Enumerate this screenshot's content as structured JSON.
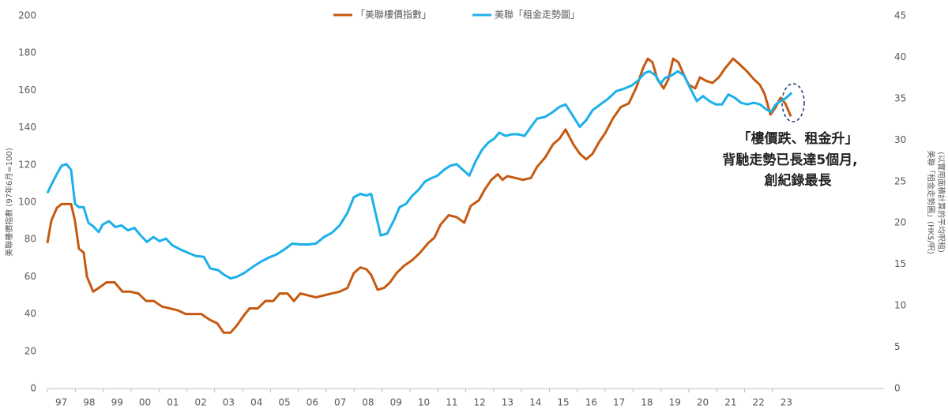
{
  "chart_data": {
    "type": "line",
    "y_label": "美聯樓價指數 (97年6月=100)",
    "y2_label": "美聯「租金走勢圖」(HK$/呎)",
    "y2_label_note": "(以實用面積計算的平均呎租)",
    "annotation": [
      "「樓價跌、租金升」",
      "背馳走勢已長達5個月,",
      "創紀錄最長"
    ],
    "xlim": [
      1997,
      2027
    ],
    "xticks": [
      {
        "value": 1997,
        "label": "97"
      },
      {
        "value": 1998,
        "label": "98"
      },
      {
        "value": 1999,
        "label": "99"
      },
      {
        "value": 2000,
        "label": "00"
      },
      {
        "value": 2001,
        "label": "01"
      },
      {
        "value": 2002,
        "label": "02"
      },
      {
        "value": 2003,
        "label": "03"
      },
      {
        "value": 2004,
        "label": "04"
      },
      {
        "value": 2005,
        "label": "05"
      },
      {
        "value": 2006,
        "label": "06"
      },
      {
        "value": 2007,
        "label": "07"
      },
      {
        "value": 2008,
        "label": "08"
      },
      {
        "value": 2009,
        "label": "09"
      },
      {
        "value": 2010,
        "label": "10"
      },
      {
        "value": 2011,
        "label": "11"
      },
      {
        "value": 2012,
        "label": "12"
      },
      {
        "value": 2013,
        "label": "13"
      },
      {
        "value": 2014,
        "label": "14"
      },
      {
        "value": 2015,
        "label": "15"
      },
      {
        "value": 2016,
        "label": "16"
      },
      {
        "value": 2017,
        "label": "17"
      },
      {
        "value": 2018,
        "label": "18"
      },
      {
        "value": 2019,
        "label": "19"
      },
      {
        "value": 2020,
        "label": "20"
      },
      {
        "value": 2021,
        "label": "21"
      },
      {
        "value": 2022,
        "label": "22"
      },
      {
        "value": 2023,
        "label": "23"
      }
    ],
    "ylim": [
      0,
      200
    ],
    "yticks": [
      0,
      20,
      40,
      60,
      80,
      100,
      120,
      140,
      160,
      180,
      200
    ],
    "y2lim": [
      0,
      45
    ],
    "y2ticks": [
      0,
      5,
      10,
      15,
      20,
      25,
      30,
      35,
      40,
      45
    ],
    "grid": false,
    "series": [
      {
        "name": "「美聯樓價指數」",
        "color": "#c55a11",
        "x": [
          1997.0,
          1997.14,
          1997.34,
          1997.51,
          1997.68,
          1997.85,
          1997.99,
          1998.13,
          1998.3,
          1998.42,
          1998.64,
          1998.84,
          1999.12,
          1999.41,
          1999.69,
          1999.97,
          2000.26,
          2000.54,
          2000.82,
          2001.11,
          2001.39,
          2001.67,
          2001.96,
          2002.24,
          2002.52,
          2002.81,
          2003.09,
          2003.32,
          2003.57,
          2003.8,
          2004.03,
          2004.25,
          2004.54,
          2004.82,
          2005.1,
          2005.33,
          2005.61,
          2005.84,
          2006.07,
          2006.35,
          2006.63,
          2006.92,
          2007.2,
          2007.48,
          2007.76,
          2007.99,
          2008.22,
          2008.44,
          2008.61,
          2008.84,
          2009.07,
          2009.29,
          2009.52,
          2009.8,
          2010.09,
          2010.37,
          2010.65,
          2010.88,
          2011.1,
          2011.39,
          2011.67,
          2011.95,
          2012.18,
          2012.47,
          2012.69,
          2012.92,
          2013.15,
          2013.32,
          2013.49,
          2013.77,
          2014.05,
          2014.34,
          2014.56,
          2014.85,
          2015.13,
          2015.36,
          2015.58,
          2015.86,
          2016.09,
          2016.32,
          2016.55,
          2016.77,
          2017.0,
          2017.28,
          2017.56,
          2017.85,
          2018.13,
          2018.36,
          2018.53,
          2018.7,
          2018.87,
          2019.1,
          2019.27,
          2019.44,
          2019.63,
          2019.83,
          2020.0,
          2020.23,
          2020.4,
          2020.63,
          2020.85,
          2021.08,
          2021.31,
          2021.59,
          2021.82,
          2022.1,
          2022.33,
          2022.55,
          2022.72,
          2022.93,
          2023.12,
          2023.29,
          2023.46,
          2023.66
        ],
        "values": [
          78,
          90,
          97,
          99,
          99,
          99,
          90,
          75,
          73,
          60,
          52,
          54,
          57,
          57,
          52,
          52,
          51,
          47,
          47,
          44,
          43,
          42,
          40,
          40,
          40,
          37,
          35,
          30,
          30,
          34,
          39,
          43,
          43,
          47,
          47,
          51,
          51,
          47,
          51,
          50,
          49,
          50,
          51,
          52,
          54,
          62,
          65,
          64,
          61,
          53,
          54,
          57,
          62,
          66,
          69,
          73,
          78,
          81,
          88,
          93,
          92,
          89,
          98,
          101,
          107,
          112,
          115,
          112,
          114,
          113,
          112,
          113,
          119,
          124,
          131,
          134,
          139,
          131,
          126,
          123,
          126,
          132,
          137,
          145,
          151,
          153,
          162,
          172,
          177,
          175,
          166,
          161,
          166,
          177,
          175,
          168,
          163,
          161,
          167,
          165,
          164,
          167,
          172,
          177,
          174,
          170,
          166,
          163,
          158,
          147,
          151,
          156,
          153,
          146
        ]
      },
      {
        "name": "美聯「租金走勢圖」",
        "color": "#1cb0ea",
        "axis": "y2",
        "x": [
          1997.0,
          1997.17,
          1997.34,
          1997.51,
          1997.68,
          1997.85,
          1997.99,
          1998.13,
          1998.3,
          1998.47,
          1998.64,
          1998.84,
          1998.98,
          1999.21,
          1999.44,
          1999.66,
          1999.89,
          2000.12,
          2000.34,
          2000.57,
          2000.8,
          2001.02,
          2001.25,
          2001.48,
          2001.76,
          2002.04,
          2002.33,
          2002.61,
          2002.84,
          2003.12,
          2003.35,
          2003.57,
          2003.8,
          2004.08,
          2004.37,
          2004.65,
          2004.93,
          2005.22,
          2005.5,
          2005.78,
          2006.07,
          2006.35,
          2006.63,
          2006.92,
          2007.2,
          2007.48,
          2007.76,
          2007.99,
          2008.22,
          2008.44,
          2008.61,
          2008.78,
          2008.95,
          2009.18,
          2009.41,
          2009.63,
          2009.86,
          2010.09,
          2010.31,
          2010.54,
          2010.77,
          2010.99,
          2011.22,
          2011.45,
          2011.67,
          2011.9,
          2012.13,
          2012.35,
          2012.58,
          2012.81,
          2013.03,
          2013.2,
          2013.43,
          2013.66,
          2013.88,
          2014.11,
          2014.34,
          2014.56,
          2014.85,
          2015.13,
          2015.36,
          2015.58,
          2015.81,
          2016.09,
          2016.32,
          2016.55,
          2016.83,
          2017.11,
          2017.4,
          2017.68,
          2017.96,
          2018.19,
          2018.42,
          2018.59,
          2018.81,
          2018.98,
          2019.15,
          2019.38,
          2019.61,
          2019.83,
          2020.06,
          2020.29,
          2020.51,
          2020.74,
          2020.97,
          2021.19,
          2021.42,
          2021.65,
          2021.87,
          2022.1,
          2022.33,
          2022.55,
          2022.78,
          2022.95,
          2023.12,
          2023.29,
          2023.46,
          2023.69
        ],
        "values": [
          23.6,
          24.8,
          25.9,
          26.9,
          27.1,
          26.4,
          22.3,
          21.9,
          21.9,
          20.0,
          19.6,
          18.9,
          19.8,
          20.2,
          19.5,
          19.7,
          19.1,
          19.4,
          18.5,
          17.7,
          18.3,
          17.8,
          18.1,
          17.3,
          16.8,
          16.4,
          16.0,
          15.9,
          14.5,
          14.3,
          13.7,
          13.3,
          13.5,
          14.0,
          14.7,
          15.3,
          15.8,
          16.2,
          16.8,
          17.5,
          17.4,
          17.4,
          17.5,
          18.3,
          18.8,
          19.7,
          21.2,
          23.1,
          23.5,
          23.3,
          23.5,
          21.0,
          18.5,
          18.7,
          20.2,
          21.9,
          22.3,
          23.3,
          24.0,
          25.0,
          25.4,
          25.7,
          26.4,
          26.9,
          27.1,
          26.4,
          25.7,
          27.4,
          28.8,
          29.7,
          30.2,
          30.9,
          30.5,
          30.7,
          30.7,
          30.5,
          31.6,
          32.6,
          32.8,
          33.4,
          34.0,
          34.3,
          33.1,
          31.6,
          32.4,
          33.6,
          34.3,
          35.0,
          35.9,
          36.2,
          36.6,
          37.2,
          38.1,
          38.3,
          37.8,
          36.8,
          37.5,
          37.8,
          38.3,
          37.8,
          36.2,
          34.7,
          35.3,
          34.7,
          34.3,
          34.3,
          35.5,
          35.1,
          34.5,
          34.3,
          34.5,
          34.3,
          33.7,
          33.4,
          34.3,
          34.7,
          35.0,
          35.7
        ]
      }
    ]
  }
}
